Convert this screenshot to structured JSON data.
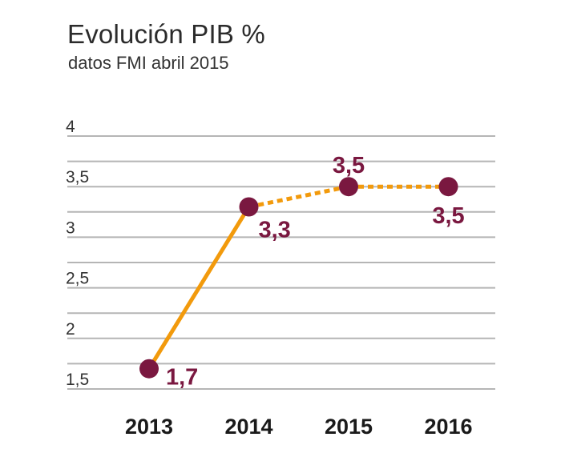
{
  "title": "Evolución PIB %",
  "subtitle": "datos FMI abril 2015",
  "colors": {
    "line": "#f29a0c",
    "marker": "#7a1840",
    "grid": "#b5b5b5",
    "label": "#7a1840"
  },
  "chart_data": {
    "type": "line",
    "title": "Evolución PIB %",
    "subtitle": "datos FMI abril 2015",
    "xlabel": "",
    "ylabel": "",
    "categories": [
      "2013",
      "2014",
      "2015",
      "2016"
    ],
    "series": [
      {
        "values": [
          1.7,
          3.3,
          3.5,
          3.5
        ],
        "data_labels": [
          "1,7",
          "3,3",
          "3,5",
          "3,5"
        ],
        "segments_style": [
          "solid",
          "dashed",
          "dashed"
        ]
      }
    ],
    "y_ticks": [
      1.5,
      2,
      2.5,
      3,
      3.5,
      4
    ],
    "y_tick_labels": [
      "1,5",
      "2",
      "2,5",
      "3",
      "3,5",
      "4"
    ],
    "ylim": [
      1.5,
      4
    ],
    "grid": true,
    "legend": "none"
  }
}
